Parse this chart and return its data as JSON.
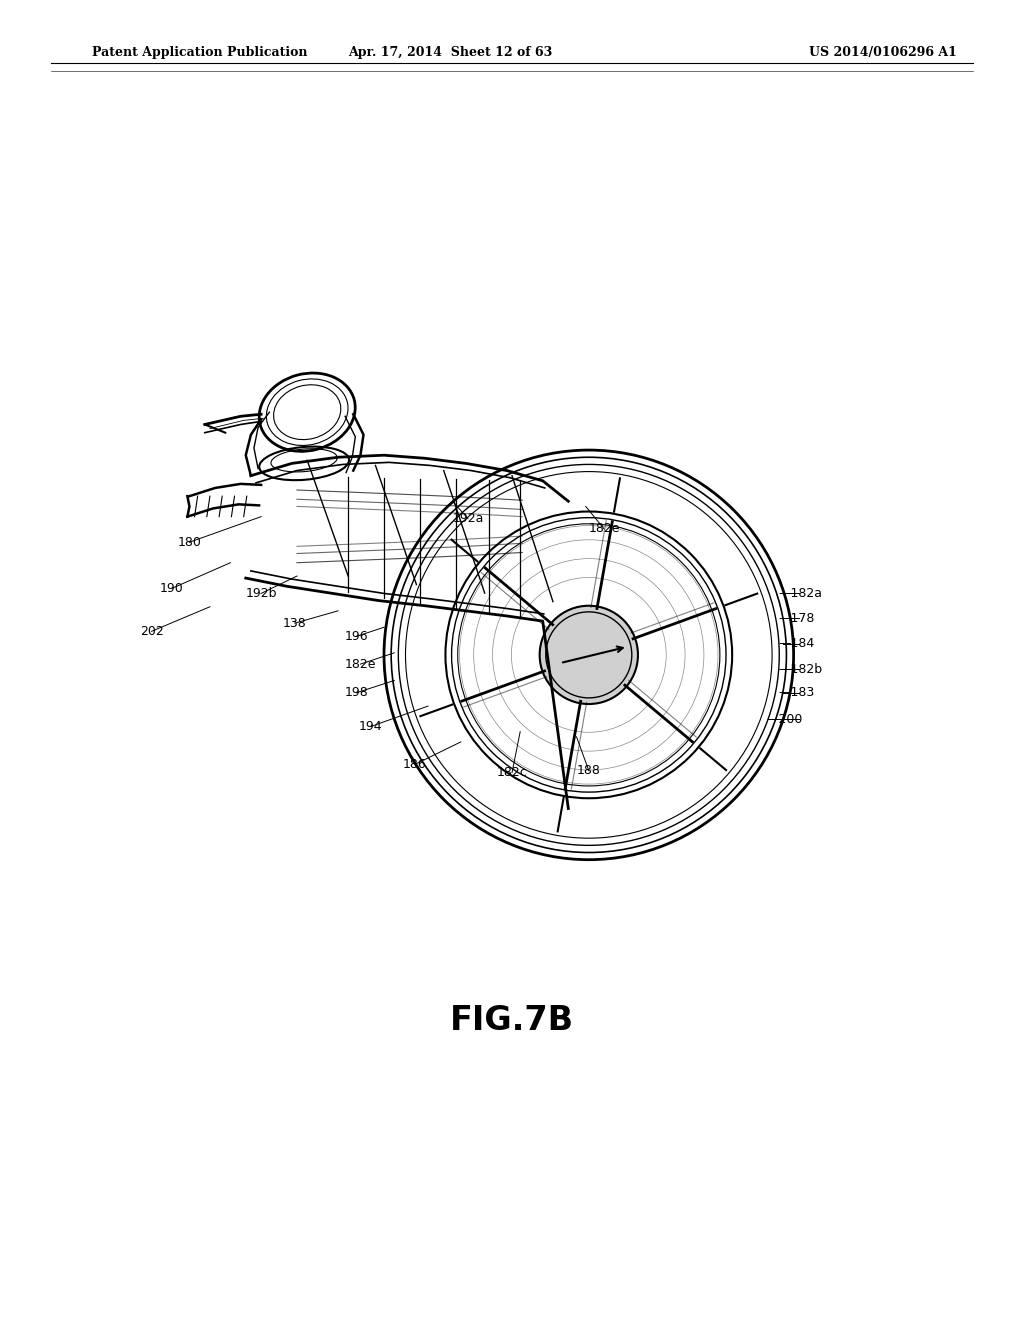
{
  "title": "FIG.7B",
  "header_left": "Patent Application Publication",
  "header_center": "Apr. 17, 2014  Sheet 12 of 63",
  "header_right": "US 2014/0106296 A1",
  "bg_color": "#ffffff"
}
